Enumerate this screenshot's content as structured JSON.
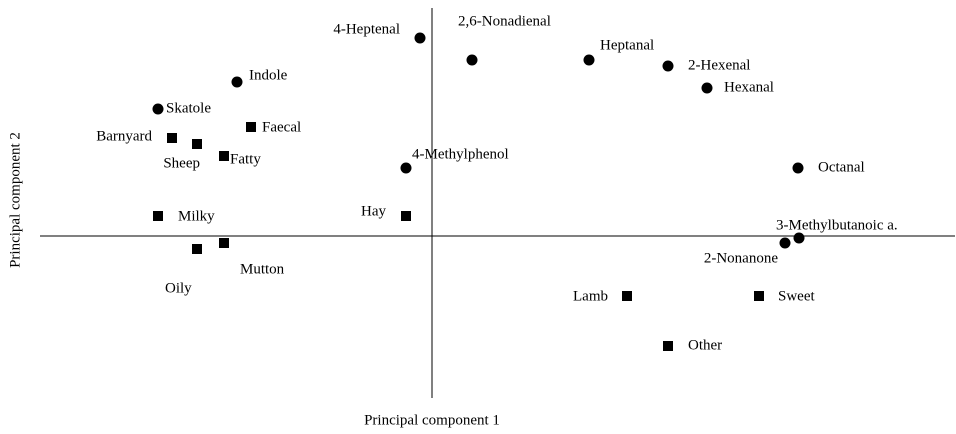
{
  "chart_data": {
    "type": "scatter",
    "x_label": "Principal component 1",
    "y_label": "Principal component 2",
    "xlim": [
      -4,
      5.2
    ],
    "ylim": [
      -1.6,
      2.3
    ],
    "series": [
      {
        "marker": "circle",
        "color": "#000000",
        "labels": [
          "4-Heptenal",
          "2,6-Nonadienal",
          "Heptanal",
          "2-Hexenal",
          "Hexanal",
          "Indole",
          "Skatole",
          "4-Methylphenol",
          "Octanal",
          "3-Methylbutanoic a.",
          "2-Nonanone"
        ],
        "x": [
          -0.12,
          0.4,
          1.57,
          2.36,
          2.75,
          -1.95,
          -2.74,
          -0.26,
          3.66,
          3.67,
          3.53
        ],
        "y": [
          1.98,
          1.76,
          1.76,
          1.7,
          1.48,
          1.54,
          1.27,
          0.68,
          0.68,
          -0.02,
          -0.07
        ]
      },
      {
        "marker": "square",
        "color": "#000000",
        "labels": [
          "Barnyard",
          "Sheep",
          "Fatty",
          "Faecal",
          "Milky",
          "Hay",
          "Oily",
          "Mutton",
          "Lamb",
          "Sweet",
          "Other"
        ],
        "x": [
          -2.6,
          -2.35,
          -2.08,
          -1.81,
          -2.74,
          -0.26,
          -2.35,
          -2.08,
          1.95,
          3.27,
          2.36
        ],
        "y": [
          0.98,
          0.92,
          0.8,
          1.09,
          0.2,
          0.2,
          -0.13,
          -0.07,
          -0.6,
          -0.6,
          -1.1
        ]
      }
    ]
  }
}
